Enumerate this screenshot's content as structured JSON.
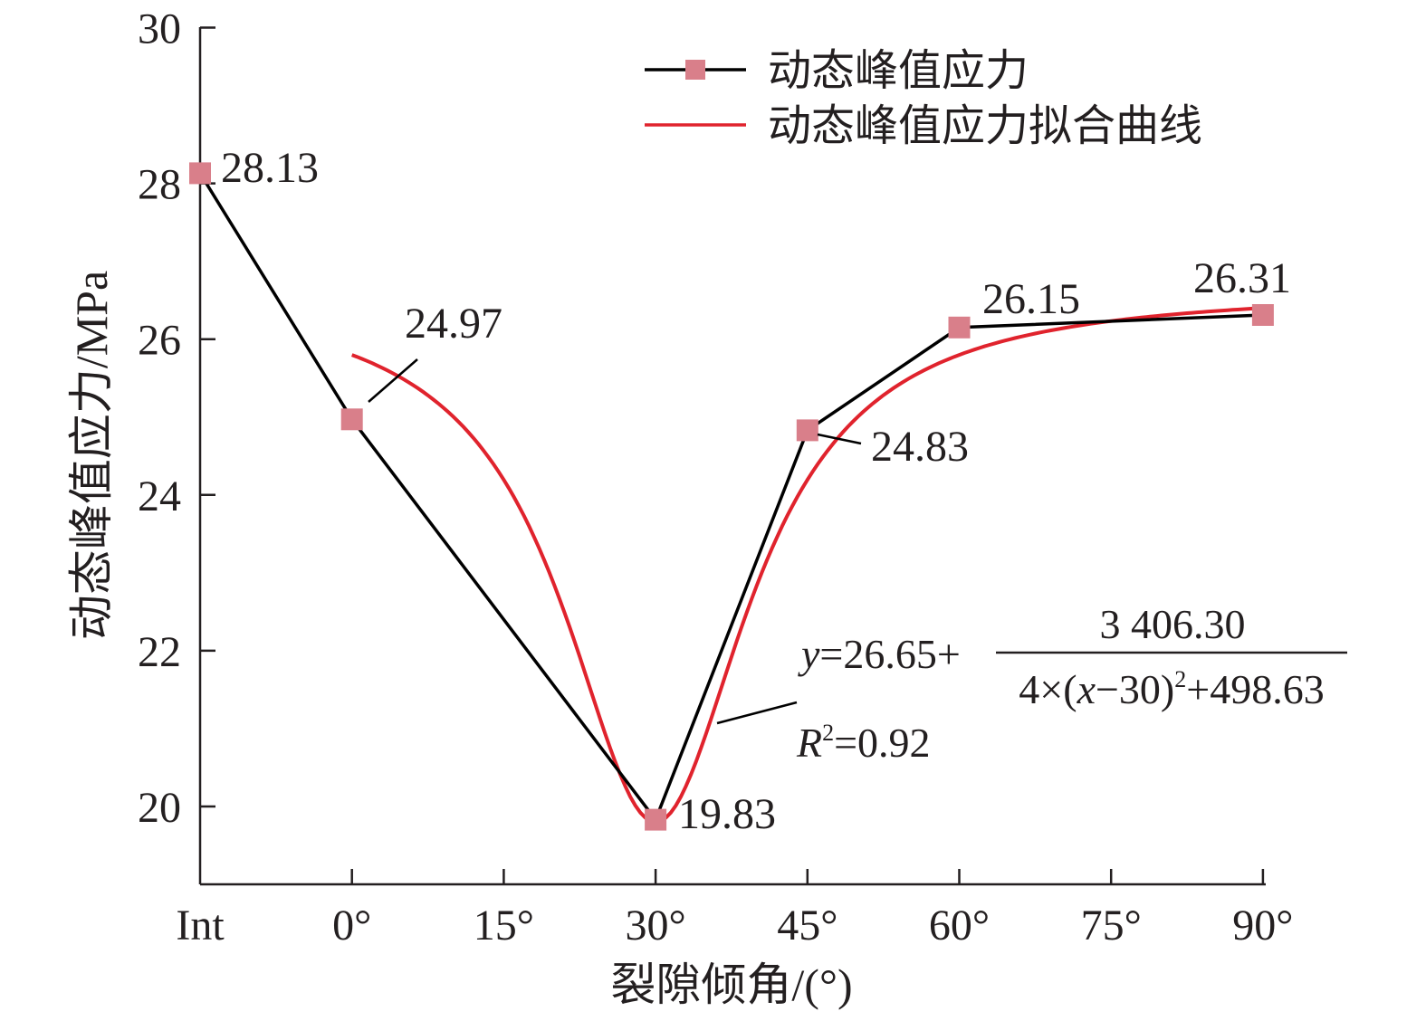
{
  "chart_data": {
    "type": "line",
    "xlabel": "裂隙倾角/(°)",
    "ylabel": "动态峰值应力/MPa",
    "categories": [
      "Int",
      "0°",
      "15°",
      "30°",
      "45°",
      "60°",
      "75°",
      "90°"
    ],
    "ylim": [
      19,
      30
    ],
    "yticks": [
      20,
      22,
      24,
      26,
      28,
      30
    ],
    "grid": false,
    "legend_position": "top-right",
    "series": [
      {
        "name": "动态峰值应力",
        "color": "#000000",
        "marker_color": "#d97f8a",
        "marker": "square",
        "x": [
          "Int",
          "0°",
          "30°",
          "45°",
          "60°",
          "90°"
        ],
        "values": [
          28.13,
          24.97,
          19.83,
          24.83,
          26.15,
          26.31
        ]
      },
      {
        "name": "动态峰值应力拟合曲线",
        "color": "#e0232d",
        "type": "fit",
        "x_range_deg": [
          0,
          90
        ],
        "formula": {
          "a": 26.65,
          "b": 3406.3,
          "c": 4,
          "x0": 30,
          "d": 498.63
        }
      }
    ],
    "data_labels": [
      "28.13",
      "24.97",
      "19.83",
      "24.83",
      "26.15",
      "26.31"
    ],
    "annotation": {
      "lhs": "y",
      "eq_prefix": "=26.65+",
      "numerator": "3 406.30",
      "den_prefix": "4×(",
      "den_var": "x",
      "den_mid": "−30)",
      "den_exp": "2",
      "den_suffix": "+498.63",
      "r_var": "R",
      "r_exp": "2",
      "r_value": "=0.92"
    }
  }
}
